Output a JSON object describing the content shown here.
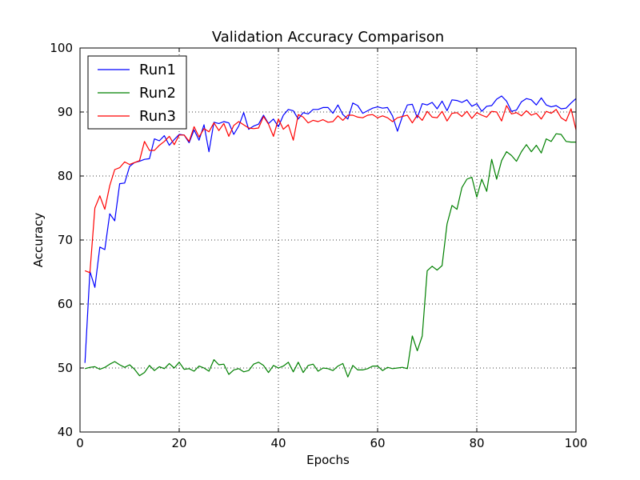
{
  "chart_data": {
    "type": "line",
    "title": "Validation Accuracy Comparison",
    "xlabel": "Epochs",
    "ylabel": "Accuracy",
    "xlim": [
      0,
      100
    ],
    "ylim": [
      40,
      100
    ],
    "xticks": [
      0,
      20,
      40,
      60,
      80,
      100
    ],
    "yticks": [
      40,
      50,
      60,
      70,
      80,
      90,
      100
    ],
    "grid": true,
    "legend_position": "top-left",
    "x": [
      1,
      2,
      3,
      4,
      5,
      6,
      7,
      8,
      9,
      10,
      11,
      12,
      13,
      14,
      15,
      16,
      17,
      18,
      19,
      20,
      21,
      22,
      23,
      24,
      25,
      26,
      27,
      28,
      29,
      30,
      31,
      32,
      33,
      34,
      35,
      36,
      37,
      38,
      39,
      40,
      41,
      42,
      43,
      44,
      45,
      46,
      47,
      48,
      49,
      50,
      51,
      52,
      53,
      54,
      55,
      56,
      57,
      58,
      59,
      60,
      61,
      62,
      63,
      64,
      65,
      66,
      67,
      68,
      69,
      70,
      71,
      72,
      73,
      74,
      75,
      76,
      77,
      78,
      79,
      80,
      81,
      82,
      83,
      84,
      85,
      86,
      87,
      88,
      89,
      90,
      91,
      92,
      93,
      94,
      95,
      96,
      97,
      98,
      99,
      100
    ],
    "series": [
      {
        "name": "Run1",
        "color": "#0000ff",
        "values": [
          50.8,
          65.1,
          62.6,
          68.9,
          68.5,
          74.1,
          73.0,
          78.8,
          78.9,
          81.5,
          82.1,
          82.3,
          82.6,
          82.7,
          85.8,
          85.5,
          86.3,
          84.8,
          85.7,
          86.5,
          86.4,
          85.2,
          87.2,
          85.6,
          88.0,
          83.8,
          88.4,
          88.2,
          88.5,
          88.3,
          86.5,
          87.8,
          89.9,
          87.3,
          87.8,
          88.1,
          89.5,
          88.2,
          88.9,
          87.7,
          89.5,
          90.4,
          90.2,
          88.9,
          89.9,
          89.7,
          90.4,
          90.4,
          90.7,
          90.7,
          89.8,
          91.1,
          89.6,
          88.9,
          91.4,
          91.0,
          89.8,
          90.2,
          90.6,
          90.8,
          90.6,
          90.7,
          89.4,
          87.0,
          89.3,
          91.1,
          91.2,
          89.1,
          91.3,
          91.1,
          91.5,
          90.5,
          91.7,
          90.2,
          91.9,
          91.8,
          91.5,
          91.9,
          90.9,
          91.3,
          90.1,
          90.9,
          91.0,
          92.0,
          92.5,
          91.7,
          90.1,
          90.3,
          91.6,
          92.1,
          91.9,
          91.1,
          92.2,
          91.1,
          90.8,
          91.0,
          90.5,
          90.6,
          91.4,
          92.1
        ]
      },
      {
        "name": "Run2",
        "color": "#008000",
        "values": [
          49.9,
          50.1,
          50.2,
          49.8,
          50.1,
          50.6,
          51.0,
          50.5,
          50.1,
          50.5,
          49.8,
          48.8,
          49.3,
          50.4,
          49.6,
          50.2,
          49.9,
          50.7,
          50.0,
          50.9,
          49.8,
          49.9,
          49.5,
          50.3,
          50.0,
          49.5,
          51.3,
          50.5,
          50.6,
          49.0,
          49.7,
          49.9,
          49.4,
          49.6,
          50.6,
          50.9,
          50.4,
          49.3,
          50.4,
          50.0,
          50.3,
          50.9,
          49.4,
          50.9,
          49.3,
          50.4,
          50.6,
          49.5,
          50.0,
          49.9,
          49.6,
          50.3,
          50.7,
          48.6,
          50.4,
          49.7,
          49.7,
          49.9,
          50.3,
          50.3,
          49.6,
          50.1,
          49.9,
          50.0,
          50.1,
          49.9,
          55.0,
          52.7,
          55.0,
          65.2,
          65.9,
          65.3,
          66.0,
          72.5,
          75.4,
          74.8,
          78.2,
          79.5,
          79.8,
          76.7,
          79.5,
          77.6,
          82.6,
          79.5,
          82.4,
          83.8,
          83.2,
          82.3,
          83.8,
          84.9,
          83.8,
          84.8,
          83.6,
          85.8,
          85.4,
          86.6,
          86.5,
          85.4,
          85.3,
          85.3
        ]
      },
      {
        "name": "Run3",
        "color": "#ff0000",
        "values": [
          65.2,
          64.9,
          75.0,
          76.9,
          74.8,
          78.5,
          81.0,
          81.3,
          82.2,
          81.8,
          82.1,
          82.4,
          85.4,
          84.0,
          84.0,
          84.8,
          85.4,
          86.2,
          84.9,
          86.4,
          86.4,
          85.4,
          87.7,
          86.1,
          87.4,
          86.9,
          88.3,
          87.1,
          88.2,
          86.2,
          87.9,
          88.5,
          88.0,
          87.5,
          87.4,
          87.5,
          89.3,
          88.1,
          86.2,
          88.9,
          87.3,
          88.0,
          85.6,
          89.6,
          89.2,
          88.3,
          88.7,
          88.5,
          88.8,
          88.4,
          88.5,
          89.4,
          88.7,
          89.5,
          89.5,
          89.2,
          89.1,
          89.5,
          89.6,
          89.1,
          89.4,
          89.1,
          88.5,
          89.1,
          89.3,
          89.5,
          88.3,
          89.5,
          88.7,
          90.1,
          89.2,
          89.1,
          90.1,
          88.6,
          89.8,
          89.9,
          89.3,
          90.1,
          89.0,
          89.9,
          89.5,
          89.2,
          90.1,
          90.0,
          88.6,
          91.0,
          89.7,
          89.9,
          89.4,
          90.2,
          89.5,
          89.8,
          88.9,
          90.1,
          89.8,
          90.4,
          89.1,
          88.6,
          90.5,
          87.2
        ]
      }
    ]
  }
}
